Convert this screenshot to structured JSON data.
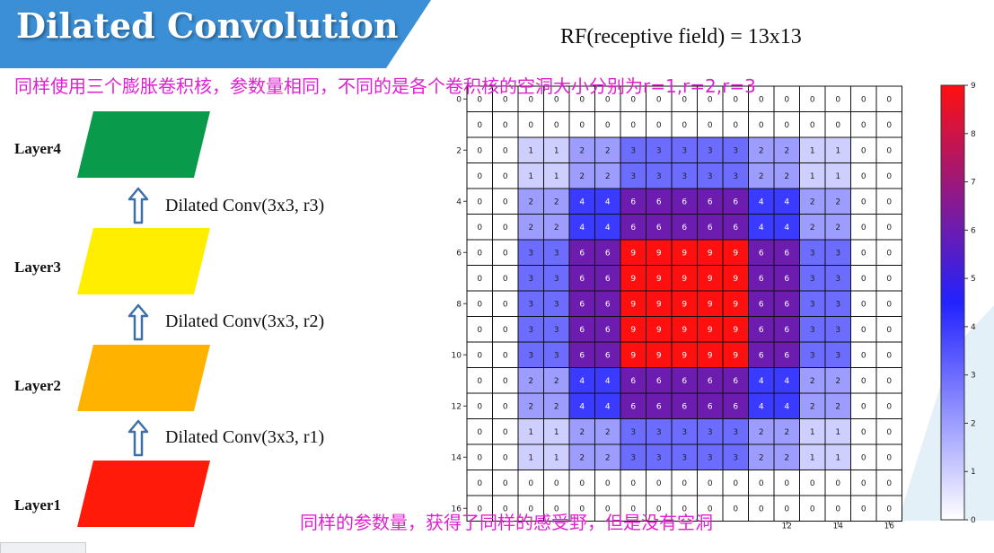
{
  "title": "Dilated Convolution",
  "rf_label": "RF(receptive field) = 13x13",
  "subtitle": "同样使用三个膨胀卷积核，参数量相同，不同的是各个卷积核的空洞大小分别为r=1,r=2,r=3",
  "bottom_note": "同样的参数量，获得了同样的感受野，但是没有空洞",
  "layers": [
    {
      "label": "Layer4",
      "color": "#0a9a4c"
    },
    {
      "label": "Layer3",
      "color": "#ffee00"
    },
    {
      "label": "Layer2",
      "color": "#ffb300"
    },
    {
      "label": "Layer1",
      "color": "#ff1a0a"
    }
  ],
  "convs": [
    {
      "label": "Dilated Conv(3x3, r3)"
    },
    {
      "label": "Dilated Conv(3x3, r2)"
    },
    {
      "label": "Dilated Conv(3x3, r1)"
    }
  ],
  "colors": {
    "banner": "#3b8fd6",
    "arrow": "#3f6fa8",
    "heat_low": "#ffffff",
    "heat_mid": "#2222ff",
    "heat_high": "#ff1010"
  },
  "chart_data": {
    "type": "heatmap",
    "rows": 17,
    "cols": 17,
    "values": [
      [
        0,
        0,
        0,
        0,
        0,
        0,
        0,
        0,
        0,
        0,
        0,
        0,
        0,
        0,
        0,
        0,
        0
      ],
      [
        0,
        0,
        0,
        0,
        0,
        0,
        0,
        0,
        0,
        0,
        0,
        0,
        0,
        0,
        0,
        0,
        0
      ],
      [
        0,
        0,
        1,
        1,
        2,
        2,
        3,
        3,
        3,
        3,
        3,
        2,
        2,
        1,
        1,
        0,
        0
      ],
      [
        0,
        0,
        1,
        1,
        2,
        2,
        3,
        3,
        3,
        3,
        3,
        2,
        2,
        1,
        1,
        0,
        0
      ],
      [
        0,
        0,
        2,
        2,
        4,
        4,
        6,
        6,
        6,
        6,
        6,
        4,
        4,
        2,
        2,
        0,
        0
      ],
      [
        0,
        0,
        2,
        2,
        4,
        4,
        6,
        6,
        6,
        6,
        6,
        4,
        4,
        2,
        2,
        0,
        0
      ],
      [
        0,
        0,
        3,
        3,
        6,
        6,
        9,
        9,
        9,
        9,
        9,
        6,
        6,
        3,
        3,
        0,
        0
      ],
      [
        0,
        0,
        3,
        3,
        6,
        6,
        9,
        9,
        9,
        9,
        9,
        6,
        6,
        3,
        3,
        0,
        0
      ],
      [
        0,
        0,
        3,
        3,
        6,
        6,
        9,
        9,
        9,
        9,
        9,
        6,
        6,
        3,
        3,
        0,
        0
      ],
      [
        0,
        0,
        3,
        3,
        6,
        6,
        9,
        9,
        9,
        9,
        9,
        6,
        6,
        3,
        3,
        0,
        0
      ],
      [
        0,
        0,
        3,
        3,
        6,
        6,
        9,
        9,
        9,
        9,
        9,
        6,
        6,
        3,
        3,
        0,
        0
      ],
      [
        0,
        0,
        2,
        2,
        4,
        4,
        6,
        6,
        6,
        6,
        6,
        4,
        4,
        2,
        2,
        0,
        0
      ],
      [
        0,
        0,
        2,
        2,
        4,
        4,
        6,
        6,
        6,
        6,
        6,
        4,
        4,
        2,
        2,
        0,
        0
      ],
      [
        0,
        0,
        1,
        1,
        2,
        2,
        3,
        3,
        3,
        3,
        3,
        2,
        2,
        1,
        1,
        0,
        0
      ],
      [
        0,
        0,
        1,
        1,
        2,
        2,
        3,
        3,
        3,
        3,
        3,
        2,
        2,
        1,
        1,
        0,
        0
      ],
      [
        0,
        0,
        0,
        0,
        0,
        0,
        0,
        0,
        0,
        0,
        0,
        0,
        0,
        0,
        0,
        0,
        0
      ],
      [
        0,
        0,
        0,
        0,
        0,
        0,
        0,
        0,
        0,
        0,
        0,
        0,
        0,
        0,
        0,
        0,
        0
      ]
    ],
    "y_ticks": [
      "0",
      "2",
      "4",
      "6",
      "8",
      "10",
      "12",
      "14",
      "16"
    ],
    "x_ticks": [
      "12",
      "14",
      "16"
    ],
    "colorbar_ticks": [
      "0",
      "1",
      "2",
      "3",
      "4",
      "5",
      "6",
      "7",
      "8",
      "9"
    ],
    "vmin": 0,
    "vmax": 9
  }
}
